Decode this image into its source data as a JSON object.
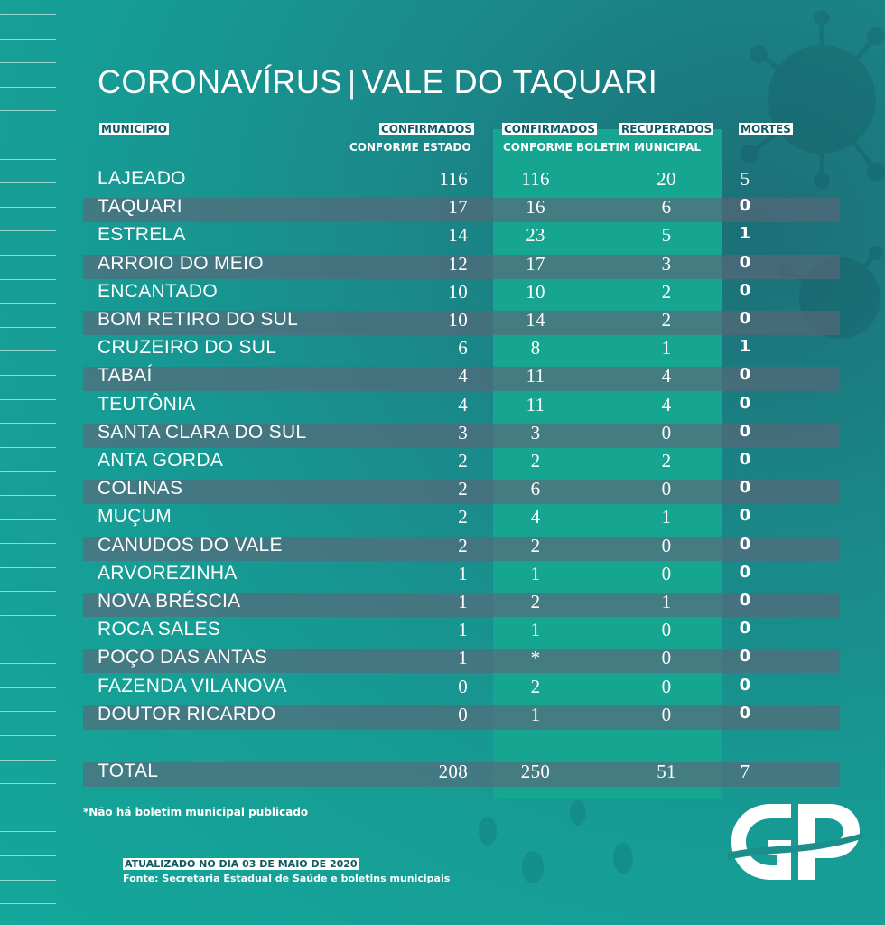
{
  "title": {
    "part1": "CORONAVÍRUS",
    "separator": "|",
    "part2": "VALE DO TAQUARI"
  },
  "headers": {
    "municipio": "MUNICÍPIO",
    "confirmados_estado": "CONFIRMADOS",
    "confirmados_estado_sub": "CONFORME ESTADO",
    "confirmados_municipal": "CONFIRMADOS",
    "recuperados": "RECUPERADOS",
    "municipal_sub": "CONFORME BOLETIM MUNICIPAL",
    "mortes": "MORTES"
  },
  "rows": [
    {
      "name": "LAJEADO",
      "est": "116",
      "mun": "116",
      "rec": "20",
      "mor": "5"
    },
    {
      "name": "TAQUARI",
      "est": "17",
      "mun": "16",
      "rec": "6",
      "mor": "0"
    },
    {
      "name": "ESTRELA",
      "est": "14",
      "mun": "23",
      "rec": "5",
      "mor": "1"
    },
    {
      "name": "ARROIO DO MEIO",
      "est": "12",
      "mun": "17",
      "rec": "3",
      "mor": "0"
    },
    {
      "name": "ENCANTADO",
      "est": "10",
      "mun": "10",
      "rec": "2",
      "mor": "0"
    },
    {
      "name": "BOM RETIRO DO SUL",
      "est": "10",
      "mun": "14",
      "rec": "2",
      "mor": "0"
    },
    {
      "name": "CRUZEIRO DO SUL",
      "est": "6",
      "mun": "8",
      "rec": "1",
      "mor": "1"
    },
    {
      "name": "TABAÍ",
      "est": "4",
      "mun": "11",
      "rec": "4",
      "mor": "0"
    },
    {
      "name": "TEUTÔNIA",
      "est": "4",
      "mun": "11",
      "rec": "4",
      "mor": "0"
    },
    {
      "name": "SANTA CLARA DO SUL",
      "est": "3",
      "mun": "3",
      "rec": "0",
      "mor": "0"
    },
    {
      "name": "ANTA GORDA",
      "est": "2",
      "mun": "2",
      "rec": "2",
      "mor": "0"
    },
    {
      "name": "COLINAS",
      "est": "2",
      "mun": "6",
      "rec": "0",
      "mor": "0"
    },
    {
      "name": "MUÇUM",
      "est": "2",
      "mun": "4",
      "rec": "1",
      "mor": "0"
    },
    {
      "name": "CANUDOS DO VALE",
      "est": "2",
      "mun": "2",
      "rec": "0",
      "mor": "0"
    },
    {
      "name": "ARVOREZINHA",
      "est": "1",
      "mun": "1",
      "rec": "0",
      "mor": "0"
    },
    {
      "name": "NOVA BRÉSCIA",
      "est": "1",
      "mun": "2",
      "rec": "1",
      "mor": "0"
    },
    {
      "name": "ROCA SALES",
      "est": "1",
      "mun": "1",
      "rec": "0",
      "mor": "0"
    },
    {
      "name": "POÇO DAS ANTAS",
      "est": "1",
      "mun": "*",
      "rec": "0",
      "mor": "0"
    },
    {
      "name": "FAZENDA VILANOVA",
      "est": "0",
      "mun": "2",
      "rec": "0",
      "mor": "0"
    },
    {
      "name": "DOUTOR RICARDO",
      "est": "0",
      "mun": "1",
      "rec": "0",
      "mor": "0"
    }
  ],
  "total": {
    "name": "TOTAL",
    "est": "208",
    "mun": "250",
    "rec": "51",
    "mor": "7"
  },
  "footnote": "*Não há boletim municipal publicado",
  "updated": "ATUALIZADO NO DIA 03 DE MAIO DE 2020",
  "source": "Fonte: Secretaria Estadual de Saúde e boletins municipais",
  "logo_text": "GP",
  "colors": {
    "background": "#14a79a",
    "highlight_column": "#15a591",
    "row_band": "#5f6478",
    "tag": "#ffffff"
  }
}
